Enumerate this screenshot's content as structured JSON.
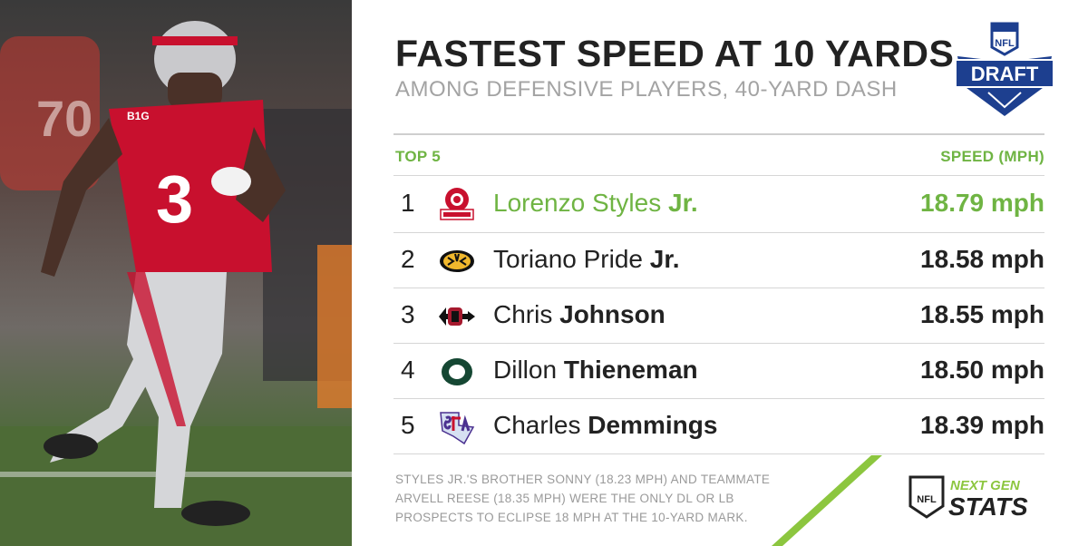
{
  "header": {
    "title": "FASTEST SPEED AT 10 YARDS",
    "subtitle": "AMONG DEFENSIVE PLAYERS, 40-YARD DASH"
  },
  "logo": {
    "top_text": "NFL",
    "main_text": "DRAFT"
  },
  "table": {
    "left_header": "TOP 5",
    "right_header": "SPEED (MPH)",
    "rows": [
      {
        "rank": "1",
        "first": "Lorenzo Styles",
        "last": "Jr.",
        "speed": "18.79 mph",
        "school_icon": "ohio-state-logo-icon"
      },
      {
        "rank": "2",
        "first": "Toriano Pride",
        "last": "Jr.",
        "speed": "18.58 mph",
        "school_icon": "missouri-tiger-logo-icon"
      },
      {
        "rank": "3",
        "first": "Chris",
        "last": "Johnson",
        "speed": "18.55 mph",
        "school_icon": "san-diego-state-logo-icon"
      },
      {
        "rank": "4",
        "first": "Dillon",
        "last": "Thieneman",
        "speed": "18.50 mph",
        "school_icon": "oregon-logo-icon"
      },
      {
        "rank": "5",
        "first": "Charles",
        "last": "Demmings",
        "speed": "18.39 mph",
        "school_icon": "stephen-f-austin-logo-icon"
      }
    ]
  },
  "footnote": "STYLES JR.'S BROTHER SONNY (18.23 MPH) AND TEAMMATE ARVELL REESE (18.35 MPH) WERE THE ONLY DL OR LB PROSPECTS TO ECLIPSE 18 MPH AT THE 10-YARD MARK.",
  "brand": {
    "nfl": "NFL",
    "next_gen": "NEXT GEN",
    "stats": "STATS"
  },
  "photo": {
    "jersey_number": "3",
    "background_number": "70",
    "conference": "B1G"
  },
  "colors": {
    "accent_green": "#6fb443",
    "text_dark": "#222222",
    "muted_gray": "#a3a3a3",
    "nfl_blue": "#1d3f8f",
    "ohio_red": "#c8102e"
  }
}
